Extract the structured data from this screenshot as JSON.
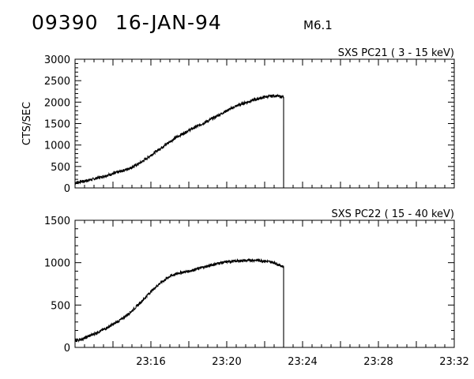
{
  "header": {
    "event_id": "09390",
    "date": "16-JAN-94",
    "flare_class": "M6.1"
  },
  "chart_data": [
    {
      "type": "line",
      "title": "SXS PC21  (  3 - 15 keV)",
      "ylabel": "CTS/SEC",
      "xlabel": "",
      "x_unit": "time (hh:mm)",
      "xlim": [
        "23:12",
        "23:32"
      ],
      "ylim": [
        0,
        3000
      ],
      "yticks": [
        0,
        500,
        1000,
        1500,
        2000,
        2500,
        3000
      ],
      "xtick_labels": [],
      "series": [
        {
          "x": [
            "23:12:00",
            "23:12:30",
            "23:13:00",
            "23:13:30",
            "23:14:00",
            "23:14:30",
            "23:15:00",
            "23:15:30",
            "23:16:00",
            "23:16:30",
            "23:17:00",
            "23:17:30",
            "23:18:00",
            "23:18:30",
            "23:19:00",
            "23:19:30",
            "23:20:00",
            "23:20:30",
            "23:21:00",
            "23:21:30",
            "23:22:00",
            "23:22:30",
            "23:23:00",
            "23:23:05"
          ],
          "y": [
            120,
            160,
            210,
            270,
            330,
            400,
            480,
            600,
            760,
            920,
            1080,
            1220,
            1340,
            1450,
            1560,
            1680,
            1800,
            1910,
            1990,
            2060,
            2120,
            2150,
            2120,
            0
          ]
        }
      ]
    },
    {
      "type": "line",
      "title": "SXS PC22  ( 15 - 40 keV)",
      "ylabel": "",
      "xlabel": "",
      "x_unit": "time (hh:mm)",
      "xlim": [
        "23:12",
        "23:32"
      ],
      "ylim": [
        0,
        1500
      ],
      "yticks": [
        0,
        500,
        1000,
        1500
      ],
      "xtick_labels": [
        "23:16",
        "23:20",
        "23:24",
        "23:28",
        "23:32"
      ],
      "series": [
        {
          "x": [
            "23:12:00",
            "23:12:30",
            "23:13:00",
            "23:13:30",
            "23:14:00",
            "23:14:30",
            "23:15:00",
            "23:15:30",
            "23:16:00",
            "23:16:30",
            "23:17:00",
            "23:17:30",
            "23:18:00",
            "23:18:30",
            "23:19:00",
            "23:19:30",
            "23:20:00",
            "23:20:30",
            "23:21:00",
            "23:21:30",
            "23:22:00",
            "23:22:30",
            "23:23:00",
            "23:23:05"
          ],
          "y": [
            75,
            110,
            160,
            210,
            270,
            340,
            430,
            540,
            660,
            760,
            840,
            880,
            900,
            930,
            960,
            990,
            1010,
            1020,
            1025,
            1030,
            1020,
            1000,
            950,
            0
          ]
        }
      ]
    }
  ]
}
